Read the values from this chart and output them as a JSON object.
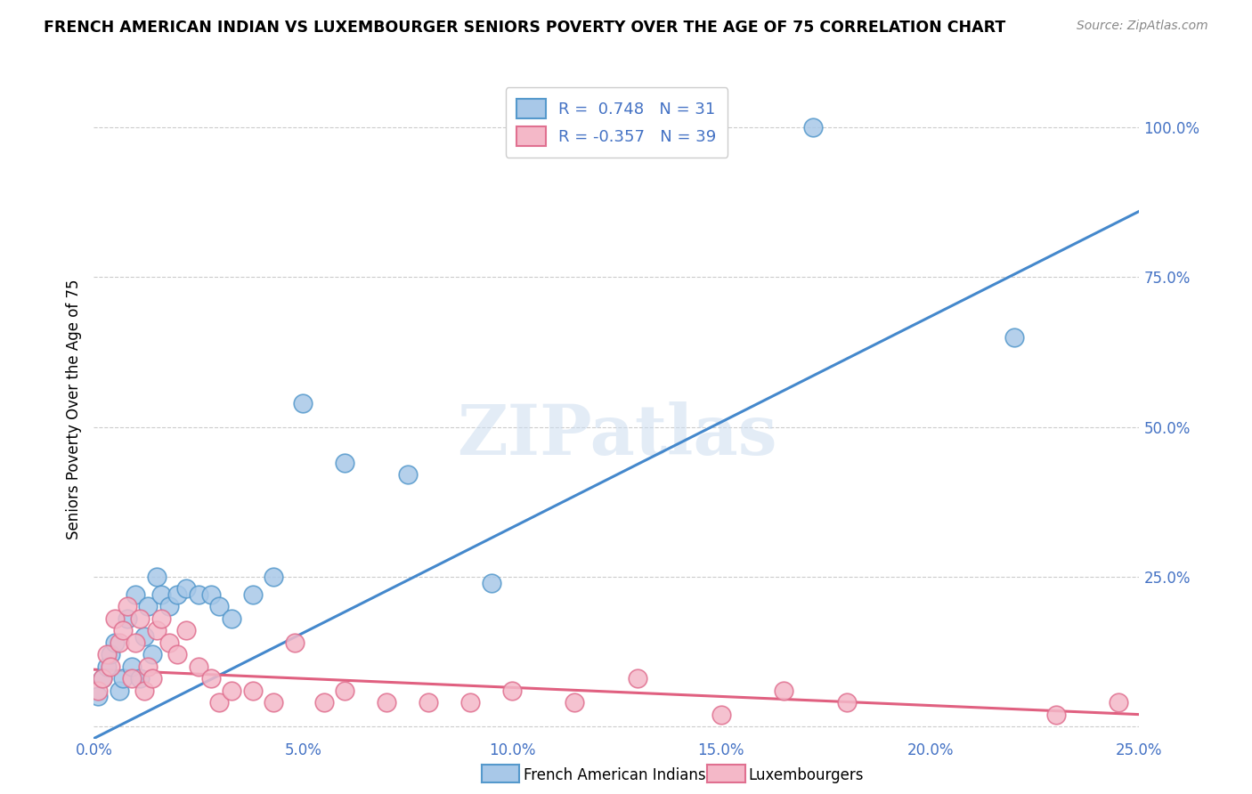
{
  "title": "FRENCH AMERICAN INDIAN VS LUXEMBOURGER SENIORS POVERTY OVER THE AGE OF 75 CORRELATION CHART",
  "source": "Source: ZipAtlas.com",
  "ylabel": "Seniors Poverty Over the Age of 75",
  "xlim": [
    0.0,
    0.25
  ],
  "ylim": [
    -0.02,
    1.08
  ],
  "xticks": [
    0.0,
    0.05,
    0.1,
    0.15,
    0.2,
    0.25
  ],
  "yticks": [
    0.0,
    0.25,
    0.5,
    0.75,
    1.0
  ],
  "xticklabels": [
    "0.0%",
    "5.0%",
    "10.0%",
    "15.0%",
    "20.0%",
    "25.0%"
  ],
  "yticklabels": [
    "",
    "25.0%",
    "50.0%",
    "75.0%",
    "100.0%"
  ],
  "blue_color": "#a8c8e8",
  "pink_color": "#f4b8c8",
  "blue_edge_color": "#5599cc",
  "pink_edge_color": "#e07090",
  "blue_line_color": "#4488cc",
  "pink_line_color": "#e06080",
  "R_blue": 0.748,
  "N_blue": 31,
  "R_pink": -0.357,
  "N_pink": 39,
  "legend_label_blue": "French American Indians",
  "legend_label_pink": "Luxembourgers",
  "watermark": "ZIPatlas",
  "blue_x": [
    0.001,
    0.002,
    0.003,
    0.004,
    0.005,
    0.006,
    0.007,
    0.008,
    0.009,
    0.01,
    0.011,
    0.012,
    0.013,
    0.014,
    0.015,
    0.016,
    0.018,
    0.02,
    0.022,
    0.025,
    0.028,
    0.03,
    0.033,
    0.038,
    0.043,
    0.05,
    0.06,
    0.075,
    0.095,
    0.22,
    0.172
  ],
  "blue_y": [
    0.05,
    0.08,
    0.1,
    0.12,
    0.14,
    0.06,
    0.08,
    0.18,
    0.1,
    0.22,
    0.08,
    0.15,
    0.2,
    0.12,
    0.25,
    0.22,
    0.2,
    0.22,
    0.23,
    0.22,
    0.22,
    0.2,
    0.18,
    0.22,
    0.25,
    0.54,
    0.44,
    0.42,
    0.24,
    0.65,
    1.0
  ],
  "pink_x": [
    0.001,
    0.002,
    0.003,
    0.004,
    0.005,
    0.006,
    0.007,
    0.008,
    0.009,
    0.01,
    0.011,
    0.012,
    0.013,
    0.014,
    0.015,
    0.016,
    0.018,
    0.02,
    0.022,
    0.025,
    0.028,
    0.03,
    0.033,
    0.038,
    0.043,
    0.048,
    0.055,
    0.06,
    0.07,
    0.08,
    0.09,
    0.1,
    0.115,
    0.13,
    0.15,
    0.165,
    0.18,
    0.23,
    0.245
  ],
  "pink_y": [
    0.06,
    0.08,
    0.12,
    0.1,
    0.18,
    0.14,
    0.16,
    0.2,
    0.08,
    0.14,
    0.18,
    0.06,
    0.1,
    0.08,
    0.16,
    0.18,
    0.14,
    0.12,
    0.16,
    0.1,
    0.08,
    0.04,
    0.06,
    0.06,
    0.04,
    0.14,
    0.04,
    0.06,
    0.04,
    0.04,
    0.04,
    0.06,
    0.04,
    0.08,
    0.02,
    0.06,
    0.04,
    0.02,
    0.04
  ],
  "blue_trendline_x": [
    0.0,
    0.25
  ],
  "blue_trendline_y": [
    -0.02,
    0.86
  ],
  "pink_trendline_x": [
    0.0,
    0.25
  ],
  "pink_trendline_y": [
    0.095,
    0.02
  ]
}
